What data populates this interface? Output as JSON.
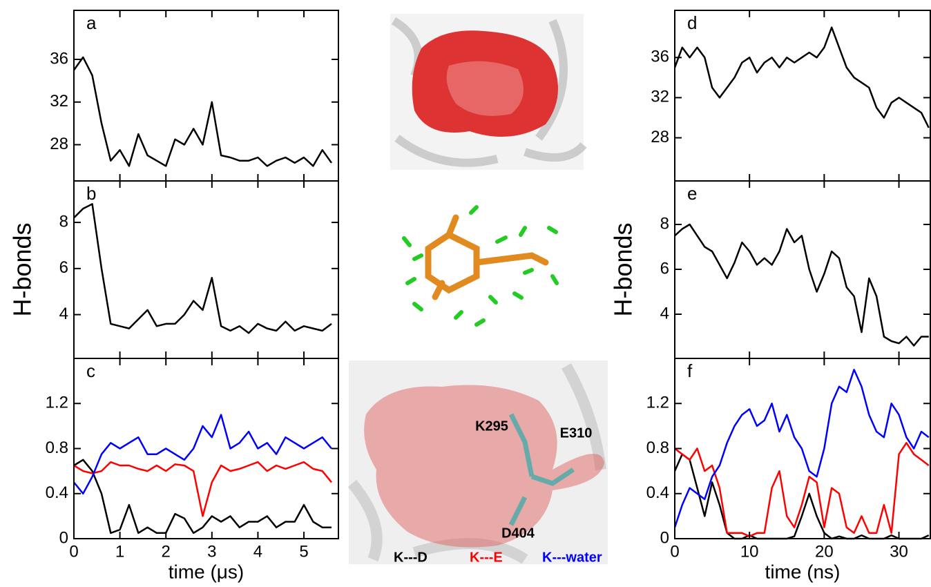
{
  "chart_data": [
    {
      "type": "line",
      "panel_label": "a",
      "x": [
        0,
        0.2,
        0.4,
        0.6,
        0.8,
        1.0,
        1.2,
        1.4,
        1.6,
        1.8,
        2.0,
        2.2,
        2.4,
        2.6,
        2.8,
        3.0,
        3.2,
        3.4,
        3.6,
        3.8,
        4.0,
        4.2,
        4.4,
        4.6,
        4.8,
        5.0,
        5.2,
        5.4,
        5.6
      ],
      "values": [
        35,
        36.2,
        34.5,
        30,
        26.5,
        27.5,
        26,
        29,
        27,
        26.5,
        26,
        28.5,
        28,
        29.5,
        28,
        32,
        27,
        26.8,
        26.5,
        26.5,
        26.8,
        26,
        26.5,
        26.8,
        26.3,
        26.8,
        26,
        27.5,
        26.3
      ],
      "color": "#000000",
      "xlim": [
        0,
        5.75
      ],
      "ylim": [
        24.6,
        40.6
      ],
      "yticks": [
        28,
        32,
        36
      ]
    },
    {
      "type": "line",
      "panel_label": "b",
      "ylabel": "H-bonds",
      "x": [
        0,
        0.2,
        0.4,
        0.6,
        0.8,
        1.0,
        1.2,
        1.4,
        1.6,
        1.8,
        2.0,
        2.2,
        2.4,
        2.6,
        2.8,
        3.0,
        3.2,
        3.4,
        3.6,
        3.8,
        4.0,
        4.2,
        4.4,
        4.6,
        4.8,
        5.0,
        5.2,
        5.4,
        5.6
      ],
      "values": [
        8.2,
        8.6,
        8.8,
        6,
        3.6,
        3.5,
        3.4,
        3.8,
        4.2,
        3.5,
        3.6,
        3.6,
        4,
        4.6,
        4.2,
        5.6,
        3.5,
        3.3,
        3.5,
        3.2,
        3.6,
        3.4,
        3.3,
        3.7,
        3.3,
        3.5,
        3.4,
        3.3,
        3.6
      ],
      "color": "#000000",
      "xlim": [
        0,
        5.75
      ],
      "ylim": [
        2.1,
        9.8
      ],
      "yticks": [
        4,
        6,
        8
      ]
    },
    {
      "type": "line",
      "panel_label": "c",
      "xlabel": "time (μs)",
      "x": [
        0,
        0.2,
        0.4,
        0.6,
        0.8,
        1.0,
        1.2,
        1.4,
        1.6,
        1.8,
        2.0,
        2.2,
        2.4,
        2.6,
        2.8,
        3.0,
        3.2,
        3.4,
        3.6,
        3.8,
        4.0,
        4.2,
        4.4,
        4.6,
        4.8,
        5.0,
        5.2,
        5.4,
        5.6
      ],
      "series": [
        {
          "name": "K---D",
          "color": "#000000",
          "values": [
            0.65,
            0.7,
            0.6,
            0.4,
            0.05,
            0.08,
            0.3,
            0.05,
            0.1,
            0.05,
            0.05,
            0.22,
            0.18,
            0.05,
            0.1,
            0.2,
            0.15,
            0.2,
            0.1,
            0.15,
            0.15,
            0.2,
            0.1,
            0.15,
            0.15,
            0.3,
            0.15,
            0.1,
            0.1
          ]
        },
        {
          "name": "K---E",
          "color": "#ff0000",
          "values": [
            0.65,
            0.6,
            0.58,
            0.6,
            0.68,
            0.65,
            0.65,
            0.62,
            0.6,
            0.65,
            0.6,
            0.66,
            0.65,
            0.6,
            0.2,
            0.5,
            0.65,
            0.6,
            0.62,
            0.65,
            0.68,
            0.6,
            0.65,
            0.62,
            0.65,
            0.68,
            0.62,
            0.6,
            0.5
          ]
        },
        {
          "name": "K---water",
          "color": "#0000ff",
          "values": [
            0.5,
            0.4,
            0.55,
            0.75,
            0.85,
            0.8,
            0.85,
            0.9,
            0.75,
            0.75,
            0.8,
            0.75,
            0.7,
            0.8,
            1.0,
            0.9,
            1.1,
            0.8,
            0.85,
            0.95,
            0.8,
            0.85,
            0.75,
            0.9,
            0.85,
            0.8,
            0.85,
            0.9,
            0.8
          ]
        }
      ],
      "xlim": [
        0,
        5.75
      ],
      "xticks": [
        0,
        1,
        2,
        3,
        4,
        5
      ],
      "ylim": [
        0,
        1.6
      ],
      "yticks": [
        0,
        0.4,
        0.8,
        1.2
      ]
    },
    {
      "type": "line",
      "panel_label": "d",
      "x": [
        0,
        1,
        2,
        3,
        4,
        5,
        6,
        7,
        8,
        9,
        10,
        11,
        12,
        13,
        14,
        15,
        16,
        17,
        18,
        19,
        20,
        21,
        22,
        23,
        24,
        25,
        26,
        27,
        28,
        29,
        30,
        31,
        32,
        33,
        34
      ],
      "values": [
        35,
        37,
        36,
        37,
        36,
        33,
        32,
        33,
        34,
        35.5,
        36,
        34.5,
        35.5,
        36,
        35,
        36,
        35.5,
        36,
        36.5,
        36,
        37,
        39,
        37,
        35,
        34,
        33.5,
        33,
        31,
        30,
        31.5,
        32,
        31.5,
        31,
        30.5,
        29
      ],
      "color": "#000000",
      "xlim": [
        0,
        34.2
      ],
      "ylim": [
        23.7,
        40.7
      ],
      "yticks": [
        28,
        32,
        36
      ]
    },
    {
      "type": "line",
      "panel_label": "e",
      "ylabel": "H-bonds",
      "x": [
        0,
        1,
        2,
        3,
        4,
        5,
        6,
        7,
        8,
        9,
        10,
        11,
        12,
        13,
        14,
        15,
        16,
        17,
        18,
        19,
        20,
        21,
        22,
        23,
        24,
        25,
        26,
        27,
        28,
        29,
        30,
        31,
        32,
        33,
        34
      ],
      "values": [
        7.5,
        7.8,
        8,
        7.5,
        7,
        6.8,
        6.2,
        5.6,
        6.3,
        7.2,
        6.8,
        6.2,
        6.5,
        6.2,
        6.8,
        7.8,
        7.2,
        7.5,
        6,
        5,
        5.8,
        6.8,
        6.5,
        5.2,
        4.8,
        3.2,
        5.6,
        4.8,
        3,
        2.8,
        2.7,
        3,
        2.6,
        3,
        3
      ],
      "color": "#000000",
      "xlim": [
        0,
        34.2
      ],
      "ylim": [
        2.03,
        9.94
      ],
      "yticks": [
        4,
        6,
        8
      ]
    },
    {
      "type": "line",
      "panel_label": "f",
      "xlabel": "time (ns)",
      "x": [
        0,
        1,
        2,
        3,
        4,
        5,
        6,
        7,
        8,
        9,
        10,
        11,
        12,
        13,
        14,
        15,
        16,
        17,
        18,
        19,
        20,
        21,
        22,
        23,
        24,
        25,
        26,
        27,
        28,
        29,
        30,
        31,
        32,
        33,
        34
      ],
      "series": [
        {
          "color": "#000000",
          "values": [
            0.6,
            0.75,
            0.7,
            0.45,
            0.2,
            0.5,
            0.3,
            0.05,
            0,
            0,
            0.03,
            0,
            0,
            0,
            0,
            0,
            0.02,
            0.2,
            0.4,
            0.2,
            0.05,
            0,
            0.02,
            0,
            0,
            0.03,
            0,
            0,
            0,
            0.03,
            0,
            0,
            0,
            0,
            0.03
          ]
        },
        {
          "color": "#ff0000",
          "values": [
            0.8,
            0.75,
            0.7,
            0.8,
            0.6,
            0.65,
            0.45,
            0.05,
            0.05,
            0.05,
            0.02,
            0.05,
            0.05,
            0.45,
            0.6,
            0.2,
            0.1,
            0.3,
            0.55,
            0.5,
            0.1,
            0.45,
            0.4,
            0.1,
            0.05,
            0.2,
            0.05,
            0.05,
            0.3,
            0.05,
            0.75,
            0.85,
            0.75,
            0.7,
            0.65
          ]
        },
        {
          "color": "#0000ff",
          "values": [
            0.1,
            0.3,
            0.45,
            0.4,
            0.35,
            0.55,
            0.65,
            0.85,
            1.0,
            1.1,
            1.15,
            1.0,
            1.05,
            1.2,
            0.95,
            1.1,
            0.9,
            0.8,
            0.6,
            0.55,
            0.8,
            1.2,
            1.35,
            1.3,
            1.5,
            1.35,
            1.1,
            0.95,
            0.9,
            1.2,
            1.1,
            0.9,
            0.8,
            0.95,
            0.9
          ]
        }
      ],
      "xlim": [
        0,
        34.2
      ],
      "xticks": [
        0,
        10,
        20,
        30
      ],
      "ylim": [
        0,
        1.6
      ],
      "yticks": [
        0,
        0.4,
        0.8,
        1.2
      ]
    }
  ],
  "annotations": [
    "K295",
    "E310",
    "D404"
  ]
}
